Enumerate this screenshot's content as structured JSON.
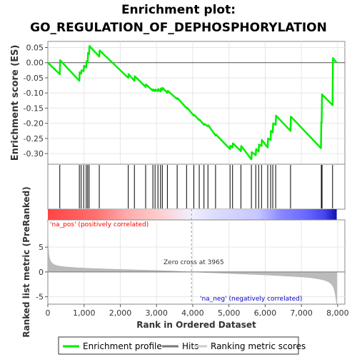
{
  "chart_data": {
    "type": "line",
    "title_line1": "Enrichment plot:",
    "title_line2": "GO_REGULATION_OF_DEPHOSPHORYLATION",
    "ylabel_top": "Enrichment score (ES)",
    "ylabel_bottom": "Ranked list metric (PreRanked)",
    "xlabel": "Rank in Ordered Dataset",
    "xlim": [
      0,
      8200
    ],
    "ylim_es": [
      -0.335,
      0.07
    ],
    "ylim_metric": [
      -6.5,
      10.5
    ],
    "x_ticks": [
      0,
      1000,
      2000,
      3000,
      4000,
      5000,
      6000,
      7000,
      8000
    ],
    "x_tick_labels": [
      "0",
      "1,000",
      "2,000",
      "3,000",
      "4,000",
      "5,000",
      "6,000",
      "7,000",
      "8,000"
    ],
    "es_ticks": [
      0.05,
      0.0,
      -0.05,
      -0.1,
      -0.15,
      -0.2,
      -0.25,
      -0.3
    ],
    "es_tick_labels": [
      "0.05",
      "0.00",
      "-0.05",
      "-0.10",
      "-0.15",
      "-0.20",
      "-0.25",
      "-0.30"
    ],
    "metric_ticks": [
      5,
      0,
      -5
    ],
    "metric_tick_labels": [
      "5",
      "0",
      "-5"
    ],
    "series": [
      {
        "name": "Enrichment profile",
        "color": "#00ee00",
        "x": [
          0,
          330,
          340,
          870,
          880,
          920,
          930,
          990,
          1000,
          1060,
          1070,
          1100,
          1110,
          1140,
          1150,
          1420,
          1430,
          2220,
          2230,
          2390,
          2400,
          2700,
          2710,
          2900,
          2910,
          2960,
          2970,
          3040,
          3050,
          3110,
          3120,
          3160,
          3170,
          3300,
          3310,
          3570,
          3580,
          3830,
          3840,
          4030,
          4040,
          4180,
          4190,
          4310,
          4320,
          4420,
          4430,
          4630,
          4640,
          5030,
          5040,
          5100,
          5110,
          5330,
          5340,
          5620,
          5630,
          5740,
          5750,
          5820,
          5830,
          5900,
          5910,
          6070,
          6080,
          6150,
          6160,
          6210,
          6220,
          6290,
          6300,
          6700,
          6710,
          7540,
          7550,
          7560,
          7570,
          7860,
          7870,
          7970
        ],
        "y": [
          0.0,
          -0.038,
          0.008,
          -0.06,
          -0.032,
          -0.036,
          -0.025,
          -0.028,
          -0.01,
          -0.016,
          0.005,
          0.0,
          0.032,
          0.028,
          0.055,
          0.02,
          0.04,
          -0.05,
          -0.038,
          -0.06,
          -0.045,
          -0.08,
          -0.072,
          -0.093,
          -0.088,
          -0.094,
          -0.089,
          -0.094,
          -0.087,
          -0.095,
          -0.085,
          -0.09,
          -0.083,
          -0.1,
          -0.093,
          -0.12,
          -0.117,
          -0.15,
          -0.148,
          -0.175,
          -0.172,
          -0.19,
          -0.188,
          -0.205,
          -0.202,
          -0.21,
          -0.207,
          -0.24,
          -0.237,
          -0.285,
          -0.274,
          -0.28,
          -0.266,
          -0.292,
          -0.275,
          -0.319,
          -0.295,
          -0.305,
          -0.285,
          -0.293,
          -0.27,
          -0.275,
          -0.255,
          -0.28,
          -0.25,
          -0.255,
          -0.225,
          -0.23,
          -0.2,
          -0.205,
          -0.175,
          -0.225,
          -0.178,
          -0.282,
          -0.195,
          -0.2,
          -0.105,
          -0.14,
          0.015,
          0.0
        ]
      },
      {
        "name": "Hits",
        "color": "#000000",
        "x": [
          330,
          870,
          920,
          990,
          1060,
          1100,
          1140,
          1420,
          2220,
          2390,
          2700,
          2900,
          2960,
          3040,
          3110,
          3160,
          3300,
          3570,
          3830,
          4030,
          4180,
          4310,
          4420,
          4630,
          5030,
          5100,
          5330,
          5620,
          5740,
          5820,
          5900,
          6070,
          6150,
          6210,
          6290,
          6700,
          7550,
          7570,
          7860
        ]
      },
      {
        "name": "Ranking metric scores",
        "color": "#bbbbbb",
        "x": [
          0,
          10,
          30,
          60,
          100,
          150,
          200,
          300,
          500,
          800,
          1200,
          1600,
          2000,
          2500,
          3000,
          3500,
          3965,
          4500,
          5000,
          5500,
          6000,
          6500,
          7000,
          7300,
          7500,
          7650,
          7750,
          7820,
          7870,
          7900,
          7930,
          7950,
          7965,
          7975
        ],
        "y": [
          10.0,
          5.5,
          3.5,
          2.4,
          1.9,
          1.6,
          1.4,
          1.2,
          1.0,
          0.85,
          0.7,
          0.6,
          0.5,
          0.4,
          0.3,
          0.15,
          0.0,
          -0.15,
          -0.3,
          -0.45,
          -0.6,
          -0.8,
          -1.0,
          -1.2,
          -1.45,
          -1.7,
          -2.0,
          -2.4,
          -2.9,
          -3.4,
          -4.3,
          -5.2,
          -6.0,
          -6.5
        ]
      }
    ],
    "gradient_bar": {
      "stops": [
        {
          "rank": 0,
          "color": "#ff4444"
        },
        {
          "rank": 1300,
          "color": "#ff6f6f"
        },
        {
          "rank": 2150,
          "color": "#ffaaaa"
        },
        {
          "rank": 3000,
          "color": "#ffcaca"
        },
        {
          "rank": 3965,
          "color": "#f0f0ff"
        },
        {
          "rank": 4600,
          "color": "#dcdcff"
        },
        {
          "rank": 5800,
          "color": "#c6c6ff"
        },
        {
          "rank": 6450,
          "color": "#8888ff"
        },
        {
          "rank": 7100,
          "color": "#6a6aff"
        },
        {
          "rank": 7650,
          "color": "#4444ee"
        },
        {
          "rank": 7975,
          "color": "#1111aa"
        }
      ]
    },
    "zero_cross_rank": 3965,
    "annotations": {
      "pos_label": "'na_pos' (positively correlated)",
      "neg_label": "'na_neg' (negatively correlated)",
      "zero_cross": "Zero cross at 3965"
    },
    "grid": true,
    "legend_position": "bottom"
  }
}
